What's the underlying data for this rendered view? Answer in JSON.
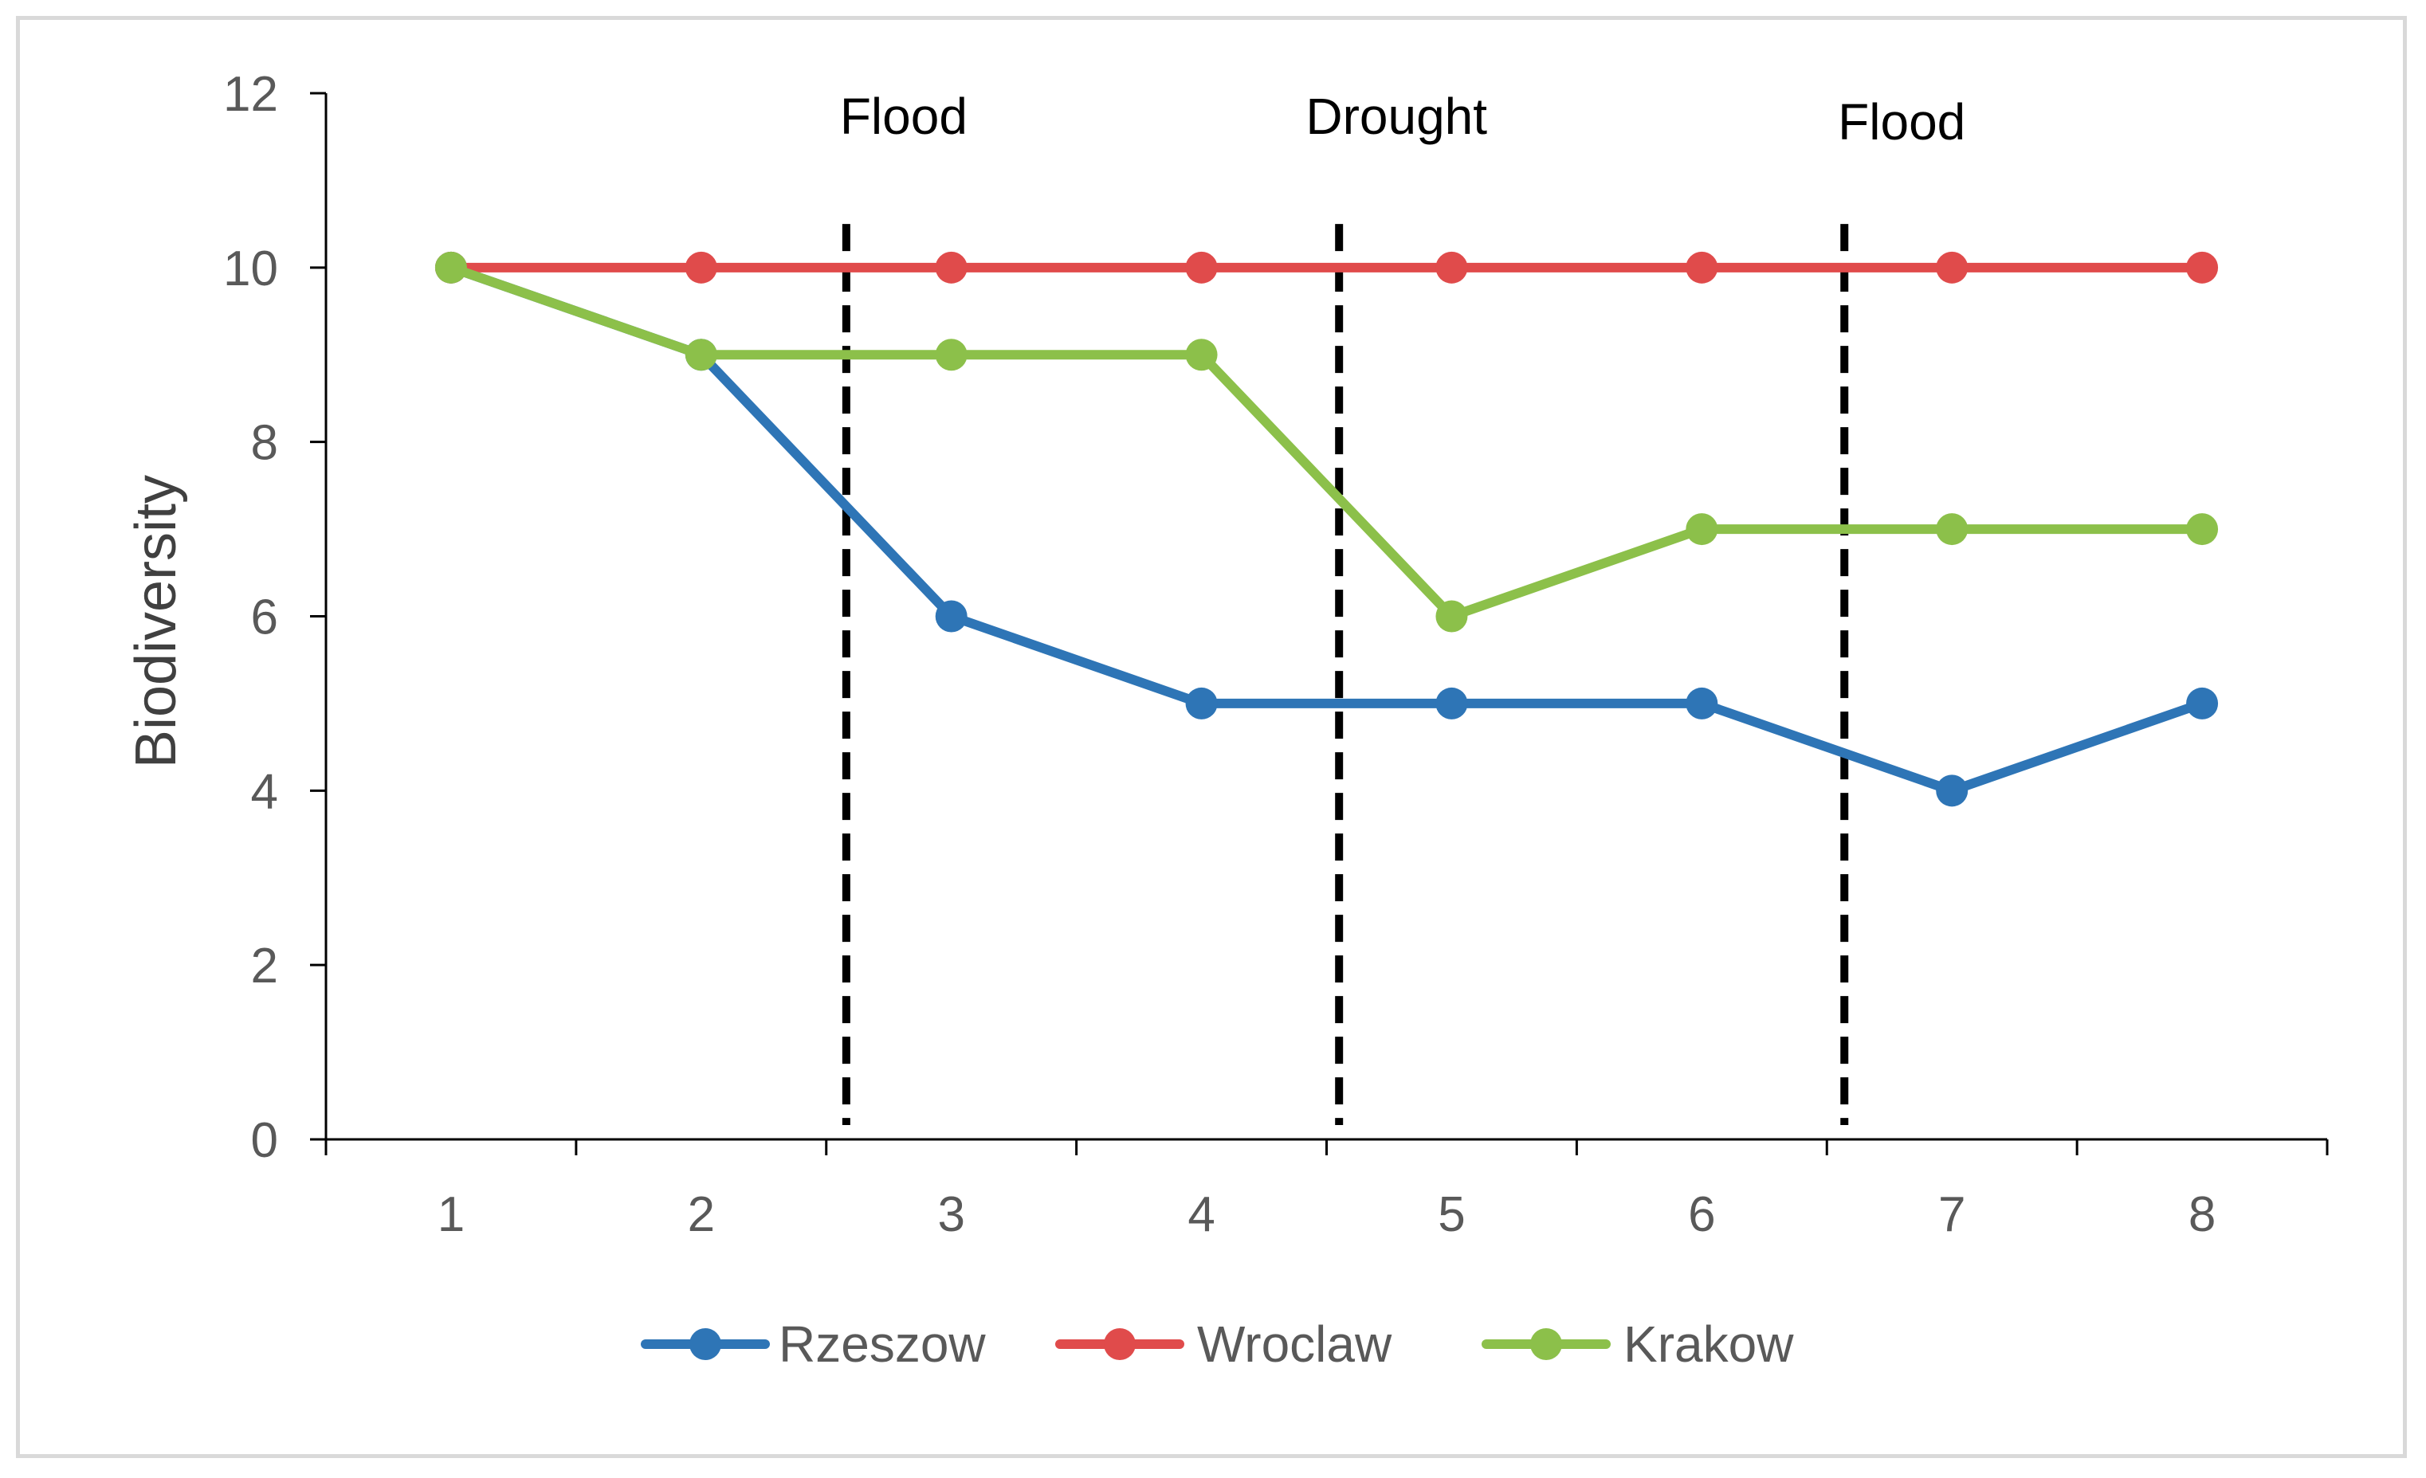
{
  "chart_data": {
    "type": "line",
    "title": "",
    "xlabel": "",
    "ylabel": "Biodiversity",
    "x": [
      1,
      2,
      3,
      4,
      5,
      6,
      7,
      8
    ],
    "ylim": [
      0,
      12
    ],
    "yticks": [
      0,
      2,
      4,
      6,
      8,
      10,
      12
    ],
    "grid": false,
    "legend_position": "bottom",
    "series": [
      {
        "name": "Rzeszow",
        "color": "#2e75b6",
        "values": [
          10,
          9,
          6,
          5,
          5,
          5,
          4,
          5
        ]
      },
      {
        "name": "Wroclaw",
        "color": "#e04b4b",
        "values": [
          10,
          10,
          10,
          10,
          10,
          10,
          10,
          10
        ]
      },
      {
        "name": "Krakow",
        "color": "#8cc04a",
        "values": [
          10,
          9,
          9,
          9,
          6,
          7,
          7,
          7
        ]
      }
    ],
    "events": [
      {
        "label": "Flood",
        "x": 2.58
      },
      {
        "label": "Drought",
        "x": 4.55
      },
      {
        "label": "Flood",
        "x": 6.57
      }
    ]
  }
}
